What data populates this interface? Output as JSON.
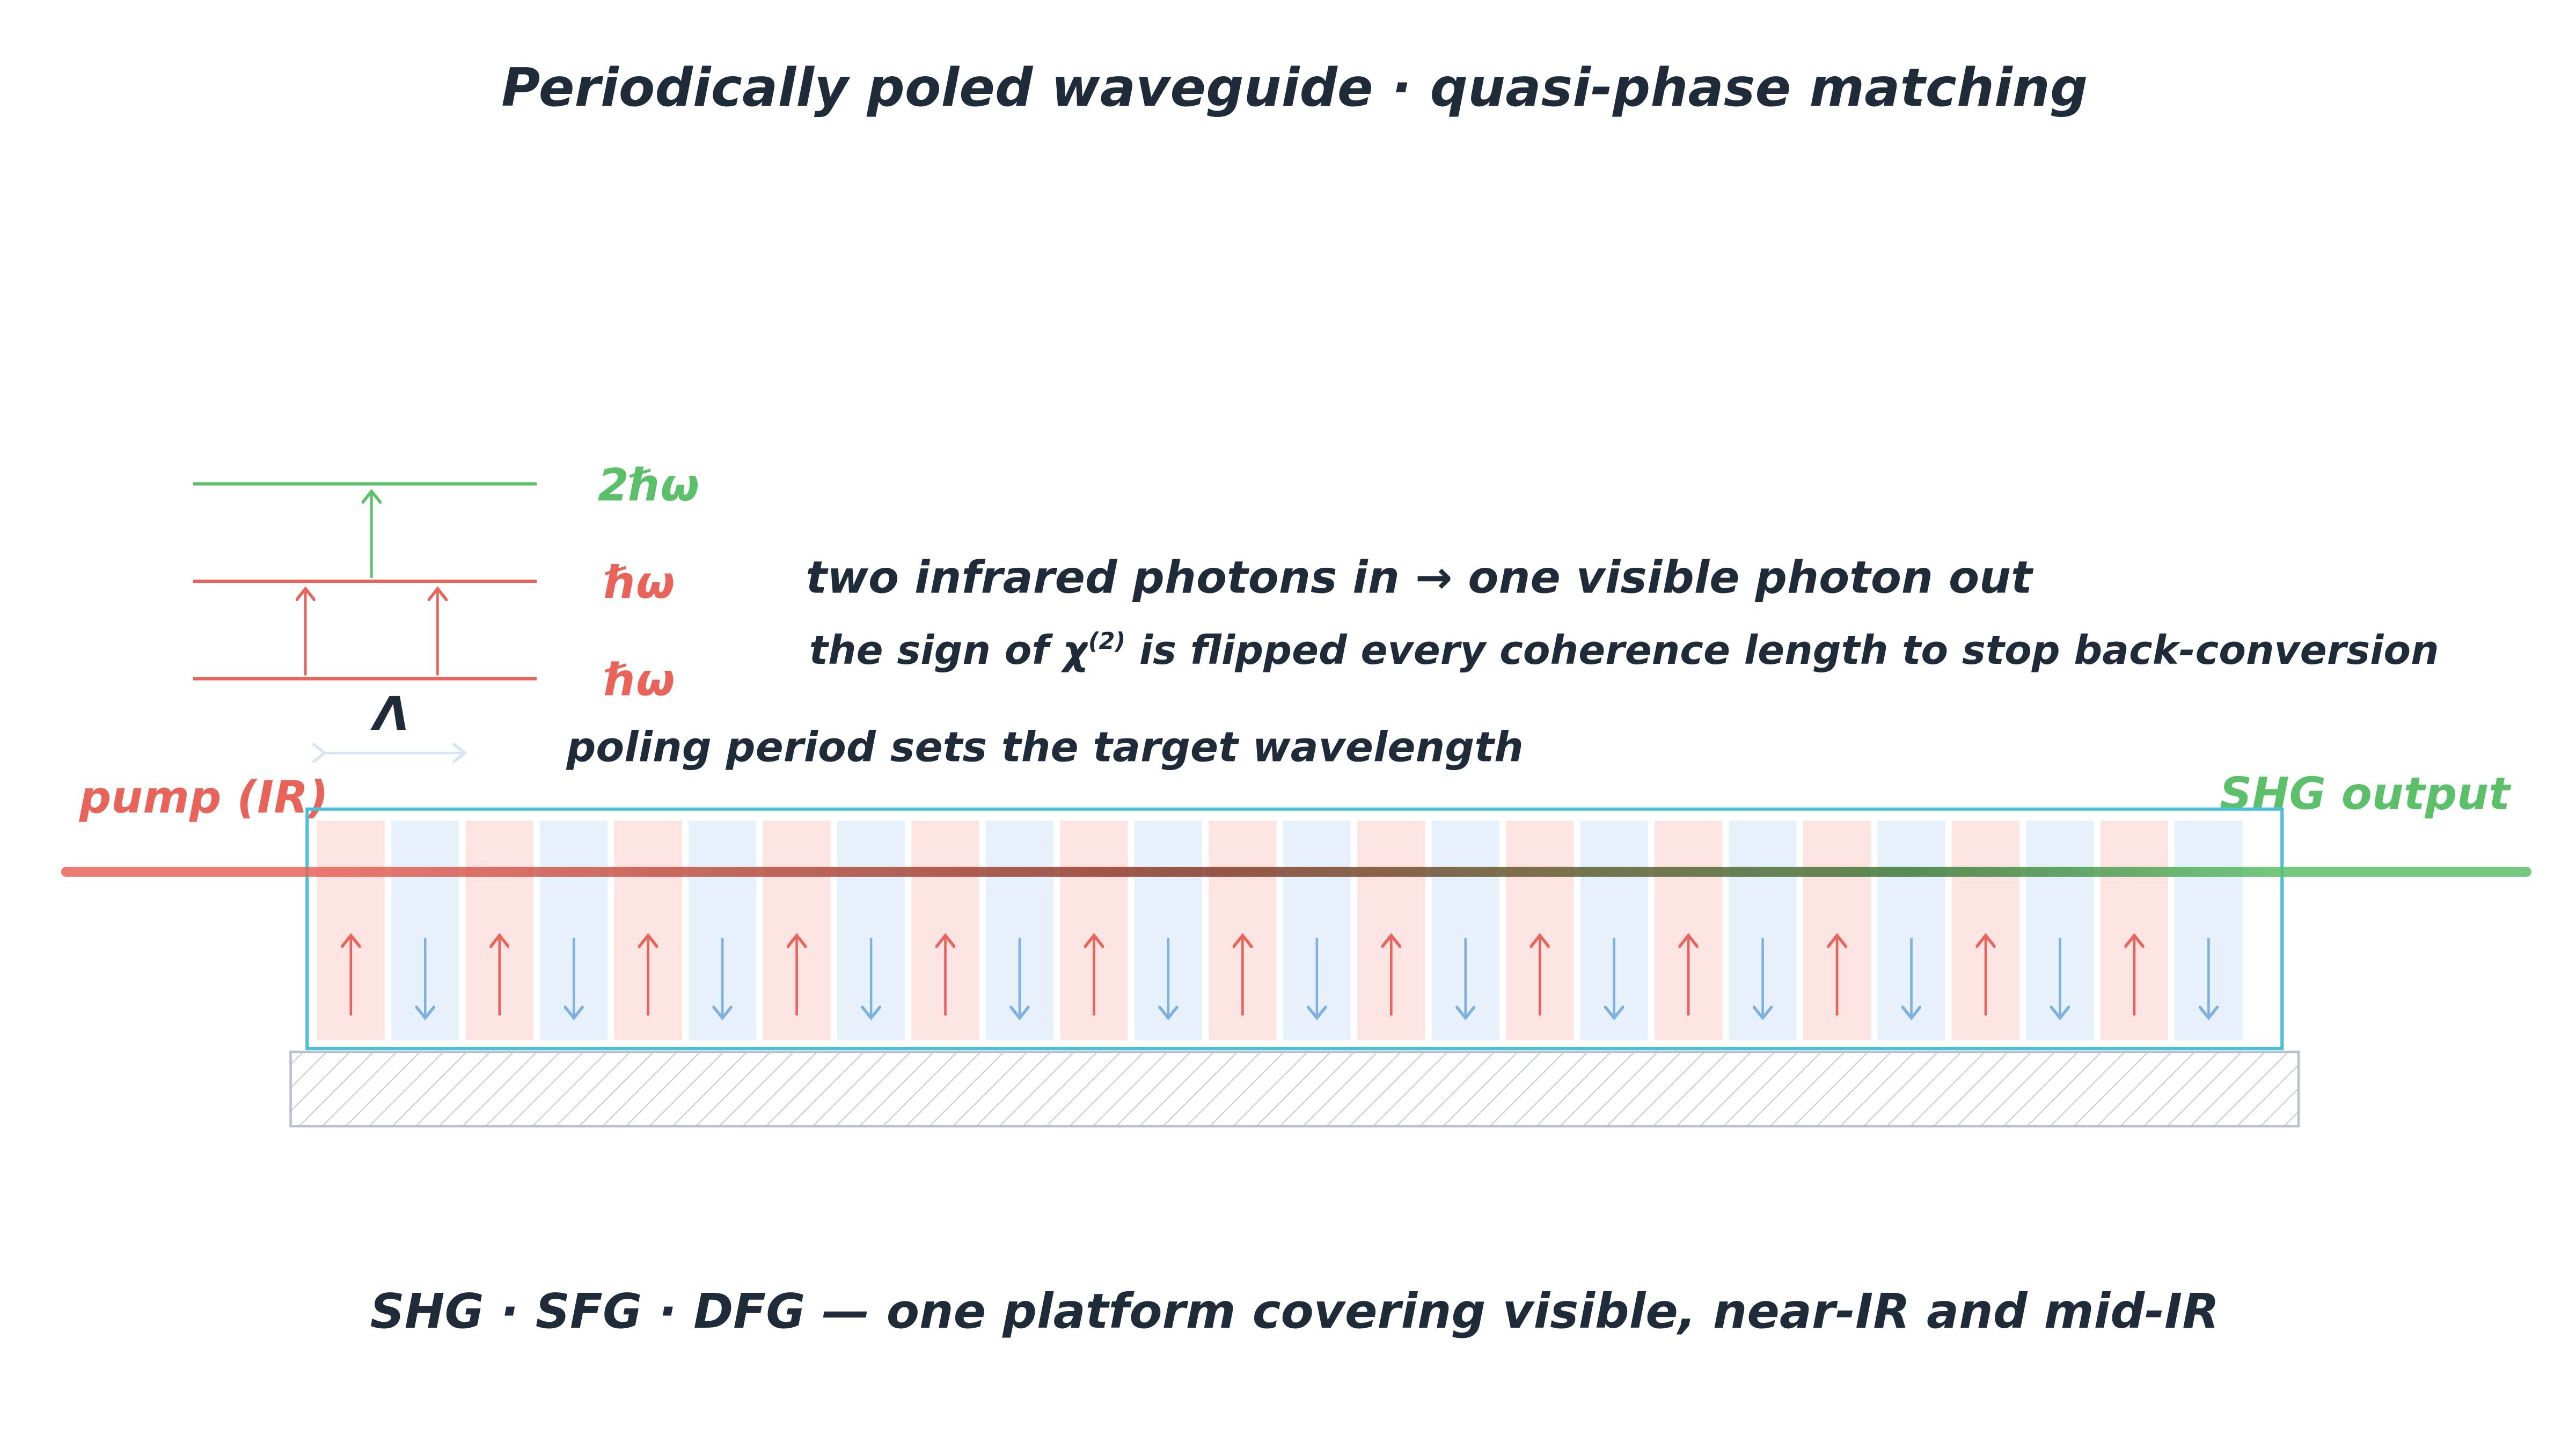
{
  "title": "Periodically poled waveguide · quasi-phase matching",
  "levels": [
    {
      "label": "2ℏω"
    },
    {
      "label": "ℏω"
    },
    {
      "label": "ℏω"
    }
  ],
  "notes": {
    "photons": "two infrared photons in → one visible photon out",
    "sign_prefix": "the sign of χ",
    "sign_sup": "(2)",
    "sign_suffix": " is flipped every coherence length to stop back-conversion"
  },
  "period": {
    "symbol": "Λ",
    "caption": "poling period sets the target wavelength"
  },
  "input": "pump (IR)",
  "output": "SHG output",
  "footer": "SHG · SFG · DFG — one platform covering visible, near-IR and mid-IR"
}
